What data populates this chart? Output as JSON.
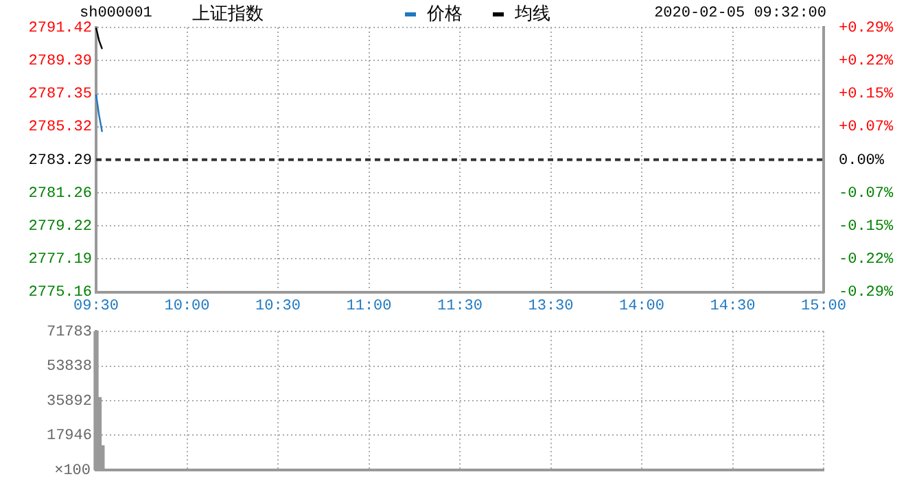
{
  "chart_data": [
    {
      "type": "line",
      "title": "上证指数",
      "subtitle": "sh000001",
      "annotations": [
        "2020-02-05 09:32:00"
      ],
      "legend": "top",
      "grid": true,
      "marker": "none",
      "line_style": "solid",
      "categories": [
        "09:30",
        null,
        null,
        null,
        null,
        null,
        null,
        null,
        null,
        null,
        null,
        null,
        null,
        null,
        null,
        null,
        null,
        null,
        null,
        null,
        null,
        null,
        null,
        null,
        null,
        null,
        null,
        null,
        null,
        null,
        "10:00",
        null,
        null,
        null,
        null,
        null,
        null,
        null,
        null,
        null,
        null,
        null,
        null,
        null,
        null,
        null,
        null,
        null,
        null,
        null,
        null,
        null,
        null,
        null,
        null,
        null,
        null,
        null,
        null,
        null,
        "10:30",
        null,
        null,
        null,
        null,
        null,
        null,
        null,
        null,
        null,
        null,
        null,
        null,
        null,
        null,
        null,
        null,
        null,
        null,
        null,
        null,
        null,
        null,
        null,
        null,
        null,
        null,
        null,
        null,
        null,
        "11:00",
        null,
        null,
        null,
        null,
        null,
        null,
        null,
        null,
        null,
        null,
        null,
        null,
        null,
        null,
        null,
        null,
        null,
        null,
        null,
        null,
        null,
        null,
        null,
        null,
        null,
        null,
        null,
        null,
        null,
        "11:30",
        null,
        null,
        null,
        null,
        null,
        null,
        null,
        null,
        null,
        null,
        null,
        null,
        null,
        null,
        null,
        null,
        null,
        null,
        null,
        null,
        null,
        null,
        null,
        null,
        null,
        null,
        null,
        null,
        null,
        "13:30",
        null,
        null,
        null,
        null,
        null,
        null,
        null,
        null,
        null,
        null,
        null,
        null,
        null,
        null,
        null,
        null,
        null,
        null,
        null,
        null,
        null,
        null,
        null,
        null,
        null,
        null,
        null,
        null,
        null,
        "14:00",
        null,
        null,
        null,
        null,
        null,
        null,
        null,
        null,
        null,
        null,
        null,
        null,
        null,
        null,
        null,
        null,
        null,
        null,
        null,
        null,
        null,
        null,
        null,
        null,
        null,
        null,
        null,
        null,
        null,
        "14:30",
        null,
        null,
        null,
        null,
        null,
        null,
        null,
        null,
        null,
        null,
        null,
        null,
        null,
        null,
        null,
        null,
        null,
        null,
        null,
        null,
        null,
        null,
        null,
        null,
        null,
        null,
        null,
        null,
        null,
        "15:00"
      ],
      "series": [
        {
          "name": "价格",
          "color": "#1f78c1",
          "values": [
            2787.3,
            2786.0,
            2785.0,
            null,
            null,
            null,
            null,
            null,
            null,
            null,
            null,
            null,
            null,
            null,
            null,
            null,
            null,
            null,
            null,
            null,
            null,
            null,
            null,
            null,
            null,
            null,
            null,
            null,
            null,
            null,
            null,
            null,
            null,
            null,
            null,
            null,
            null,
            null,
            null,
            null,
            null,
            null,
            null,
            null,
            null,
            null,
            null,
            null,
            null,
            null,
            null,
            null,
            null,
            null,
            null,
            null,
            null,
            null,
            null,
            null,
            null,
            null,
            null,
            null,
            null,
            null,
            null,
            null,
            null,
            null,
            null,
            null,
            null,
            null,
            null,
            null,
            null,
            null,
            null,
            null,
            null,
            null,
            null,
            null,
            null,
            null,
            null,
            null,
            null,
            null,
            null,
            null,
            null,
            null,
            null,
            null,
            null,
            null,
            null,
            null,
            null,
            null,
            null,
            null,
            null,
            null,
            null,
            null,
            null,
            null,
            null,
            null,
            null,
            null,
            null,
            null,
            null,
            null,
            null,
            null,
            null,
            null,
            null,
            null,
            null,
            null,
            null,
            null,
            null,
            null,
            null,
            null,
            null,
            null,
            null,
            null,
            null,
            null,
            null,
            null,
            null,
            null,
            null,
            null,
            null,
            null,
            null,
            null,
            null,
            null,
            null,
            null,
            null,
            null,
            null,
            null,
            null,
            null,
            null,
            null,
            null,
            null,
            null,
            null,
            null,
            null,
            null,
            null,
            null,
            null,
            null,
            null,
            null,
            null,
            null,
            null,
            null,
            null,
            null,
            null,
            null,
            null,
            null,
            null,
            null,
            null,
            null,
            null,
            null,
            null,
            null,
            null,
            null,
            null,
            null,
            null,
            null,
            null,
            null,
            null,
            null,
            null,
            null,
            null,
            null,
            null,
            null,
            null,
            null,
            null,
            null,
            null,
            null,
            null,
            null,
            null,
            null,
            null,
            null,
            null,
            null,
            null,
            null,
            null,
            null,
            null,
            null,
            null,
            null,
            null,
            null,
            null,
            null,
            null,
            null,
            null,
            null,
            null,
            null,
            null,
            null
          ]
        },
        {
          "name": "均线",
          "color": "#000000",
          "values": [
            2791.4,
            2790.6,
            2790.1,
            null,
            null,
            null,
            null,
            null,
            null,
            null,
            null,
            null,
            null,
            null,
            null,
            null,
            null,
            null,
            null,
            null,
            null,
            null,
            null,
            null,
            null,
            null,
            null,
            null,
            null,
            null,
            null,
            null,
            null,
            null,
            null,
            null,
            null,
            null,
            null,
            null,
            null,
            null,
            null,
            null,
            null,
            null,
            null,
            null,
            null,
            null,
            null,
            null,
            null,
            null,
            null,
            null,
            null,
            null,
            null,
            null,
            null,
            null,
            null,
            null,
            null,
            null,
            null,
            null,
            null,
            null,
            null,
            null,
            null,
            null,
            null,
            null,
            null,
            null,
            null,
            null,
            null,
            null,
            null,
            null,
            null,
            null,
            null,
            null,
            null,
            null,
            null,
            null,
            null,
            null,
            null,
            null,
            null,
            null,
            null,
            null,
            null,
            null,
            null,
            null,
            null,
            null,
            null,
            null,
            null,
            null,
            null,
            null,
            null,
            null,
            null,
            null,
            null,
            null,
            null,
            null,
            null,
            null,
            null,
            null,
            null,
            null,
            null,
            null,
            null,
            null,
            null,
            null,
            null,
            null,
            null,
            null,
            null,
            null,
            null,
            null,
            null,
            null,
            null,
            null,
            null,
            null,
            null,
            null,
            null,
            null,
            null,
            null,
            null,
            null,
            null,
            null,
            null,
            null,
            null,
            null,
            null,
            null,
            null,
            null,
            null,
            null,
            null,
            null,
            null,
            null,
            null,
            null,
            null,
            null,
            null,
            null,
            null,
            null,
            null,
            null,
            null,
            null,
            null,
            null,
            null,
            null,
            null,
            null,
            null,
            null,
            null,
            null,
            null,
            null,
            null,
            null,
            null,
            null,
            null,
            null,
            null,
            null,
            null,
            null,
            null,
            null,
            null,
            null,
            null,
            null,
            null,
            null,
            null,
            null,
            null,
            null,
            null,
            null,
            null,
            null,
            null,
            null,
            null,
            null,
            null,
            null,
            null,
            null,
            null,
            null,
            null,
            null,
            null,
            null,
            null,
            null,
            null,
            null,
            null,
            null,
            null
          ]
        }
      ],
      "ylim": [
        2775.16,
        2791.42
      ],
      "yticks": [
        2775.16,
        2777.19,
        2779.22,
        2781.26,
        2783.29,
        2785.32,
        2787.35,
        2789.39,
        2791.42
      ],
      "y2lim": [
        -0.292,
        0.292
      ],
      "y2ticks": [
        {
          "value": -0.292,
          "label": "-0.29%"
        },
        {
          "value": -0.219,
          "label": "-0.22%"
        },
        {
          "value": -0.146,
          "label": "-0.15%"
        },
        {
          "value": -0.073,
          "label": "-0.07%"
        },
        {
          "value": 0,
          "label": "0.00%"
        },
        {
          "value": 0.073,
          "label": "+0.07%"
        },
        {
          "value": 0.146,
          "label": "+0.15%"
        },
        {
          "value": 0.219,
          "label": "+0.22%"
        },
        {
          "value": 0.292,
          "label": "+0.29%"
        }
      ],
      "ref_lines": [
        {
          "axis": "y",
          "value": 2783.29,
          "color": "#333333",
          "line_style": "dashed"
        }
      ]
    },
    {
      "type": "bar",
      "grid": true,
      "tick_labels": "y",
      "color": "#999999",
      "ylabel": "×100",
      "categories": [
        null,
        null,
        null,
        null,
        null,
        null,
        null,
        null,
        null,
        null,
        null,
        null,
        null,
        null,
        null,
        null,
        null,
        null,
        null,
        null,
        null,
        null,
        null,
        null,
        null,
        null,
        null,
        null,
        null,
        null,
        null,
        null,
        null,
        null,
        null,
        null,
        null,
        null,
        null,
        null,
        null,
        null,
        null,
        null,
        null,
        null,
        null,
        null,
        null,
        null,
        null,
        null,
        null,
        null,
        null,
        null,
        null,
        null,
        null,
        null,
        null,
        null,
        null,
        null,
        null,
        null,
        null,
        null,
        null,
        null,
        null,
        null,
        null,
        null,
        null,
        null,
        null,
        null,
        null,
        null,
        null,
        null,
        null,
        null,
        null,
        null,
        null,
        null,
        null,
        null,
        null,
        null,
        null,
        null,
        null,
        null,
        null,
        null,
        null,
        null,
        null,
        null,
        null,
        null,
        null,
        null,
        null,
        null,
        null,
        null,
        null,
        null,
        null,
        null,
        null,
        null,
        null,
        null,
        null,
        null,
        null,
        null,
        null,
        null,
        null,
        null,
        null,
        null,
        null,
        null,
        null,
        null,
        null,
        null,
        null,
        null,
        null,
        null,
        null,
        null,
        null,
        null,
        null,
        null,
        null,
        null,
        null,
        null,
        null,
        null,
        null,
        null,
        null,
        null,
        null,
        null,
        null,
        null,
        null,
        null,
        null,
        null,
        null,
        null,
        null,
        null,
        null,
        null,
        null,
        null,
        null,
        null,
        null,
        null,
        null,
        null,
        null,
        null,
        null,
        null,
        null,
        null,
        null,
        null,
        null,
        null,
        null,
        null,
        null,
        null,
        null,
        null,
        null,
        null,
        null,
        null,
        null,
        null,
        null,
        null,
        null,
        null,
        null,
        null,
        null,
        null,
        null,
        null,
        null,
        null,
        null,
        null,
        null,
        null,
        null,
        null,
        null,
        null,
        null,
        null,
        null,
        null,
        null,
        null,
        null,
        null,
        null,
        null,
        null,
        null,
        null,
        null,
        null,
        null,
        null,
        null,
        null,
        null,
        null,
        null,
        null
      ],
      "values": [
        71700,
        37500,
        12500,
        null,
        null,
        null,
        null,
        null,
        null,
        null,
        null,
        null,
        null,
        null,
        null,
        null,
        null,
        null,
        null,
        null,
        null,
        null,
        null,
        null,
        null,
        null,
        null,
        null,
        null,
        null,
        null,
        null,
        null,
        null,
        null,
        null,
        null,
        null,
        null,
        null,
        null,
        null,
        null,
        null,
        null,
        null,
        null,
        null,
        null,
        null,
        null,
        null,
        null,
        null,
        null,
        null,
        null,
        null,
        null,
        null,
        null,
        null,
        null,
        null,
        null,
        null,
        null,
        null,
        null,
        null,
        null,
        null,
        null,
        null,
        null,
        null,
        null,
        null,
        null,
        null,
        null,
        null,
        null,
        null,
        null,
        null,
        null,
        null,
        null,
        null,
        null,
        null,
        null,
        null,
        null,
        null,
        null,
        null,
        null,
        null,
        null,
        null,
        null,
        null,
        null,
        null,
        null,
        null,
        null,
        null,
        null,
        null,
        null,
        null,
        null,
        null,
        null,
        null,
        null,
        null,
        null,
        null,
        null,
        null,
        null,
        null,
        null,
        null,
        null,
        null,
        null,
        null,
        null,
        null,
        null,
        null,
        null,
        null,
        null,
        null,
        null,
        null,
        null,
        null,
        null,
        null,
        null,
        null,
        null,
        null,
        null,
        null,
        null,
        null,
        null,
        null,
        null,
        null,
        null,
        null,
        null,
        null,
        null,
        null,
        null,
        null,
        null,
        null,
        null,
        null,
        null,
        null,
        null,
        null,
        null,
        null,
        null,
        null,
        null,
        null,
        null,
        null,
        null,
        null,
        null,
        null,
        null,
        null,
        null,
        null,
        null,
        null,
        null,
        null,
        null,
        null,
        null,
        null,
        null,
        null,
        null,
        null,
        null,
        null,
        null,
        null,
        null,
        null,
        null,
        null,
        null,
        null,
        null,
        null,
        null,
        null,
        null,
        null,
        null,
        null,
        null,
        null,
        null,
        null,
        null,
        null,
        null,
        null,
        null,
        null,
        null,
        null,
        null,
        null,
        null,
        null,
        null,
        null,
        null,
        null,
        null
      ],
      "ylim": [
        0,
        71783
      ],
      "yticks": [
        17946,
        35892,
        53838,
        71783
      ]
    }
  ]
}
